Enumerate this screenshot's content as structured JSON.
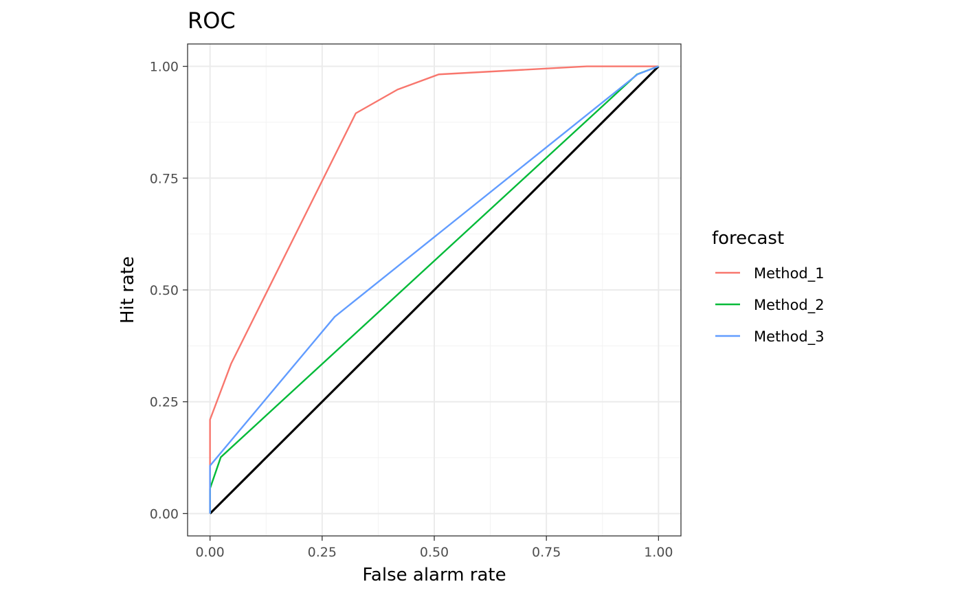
{
  "chart_data": {
    "type": "line",
    "title": "ROC",
    "xlabel": "False alarm rate",
    "ylabel": "Hit rate",
    "xlim": [
      -0.05,
      1.05
    ],
    "ylim": [
      -0.05,
      1.05
    ],
    "xticks": [
      0,
      0.25,
      0.5,
      0.75,
      1
    ],
    "xtick_labels": [
      "0.00",
      "0.25",
      "0.50",
      "0.75",
      "1.00"
    ],
    "yticks": [
      0,
      0.25,
      0.5,
      0.75,
      1
    ],
    "ytick_labels": [
      "0.00",
      "0.25",
      "0.50",
      "0.75",
      "1.00"
    ],
    "grid": true,
    "legend": {
      "title": "forecast",
      "placement": "right"
    },
    "reference_line": {
      "x": [
        0,
        1
      ],
      "y": [
        0,
        1
      ],
      "color": "#000000"
    },
    "series": [
      {
        "name": "Method_1",
        "color": "#F8766D",
        "x": [
          0,
          0,
          0.047,
          0.325,
          0.418,
          0.51,
          0.84,
          1
        ],
        "y": [
          0,
          0.21,
          0.335,
          0.895,
          0.948,
          0.982,
          1,
          1
        ]
      },
      {
        "name": "Method_2",
        "color": "#00BA38",
        "x": [
          0,
          0,
          0.024,
          0.952,
          1
        ],
        "y": [
          0,
          0.056,
          0.126,
          0.982,
          1
        ]
      },
      {
        "name": "Method_3",
        "color": "#619CFF",
        "x": [
          0,
          0,
          0.278,
          0.953,
          1
        ],
        "y": [
          0,
          0.107,
          0.44,
          0.982,
          1
        ]
      }
    ]
  }
}
